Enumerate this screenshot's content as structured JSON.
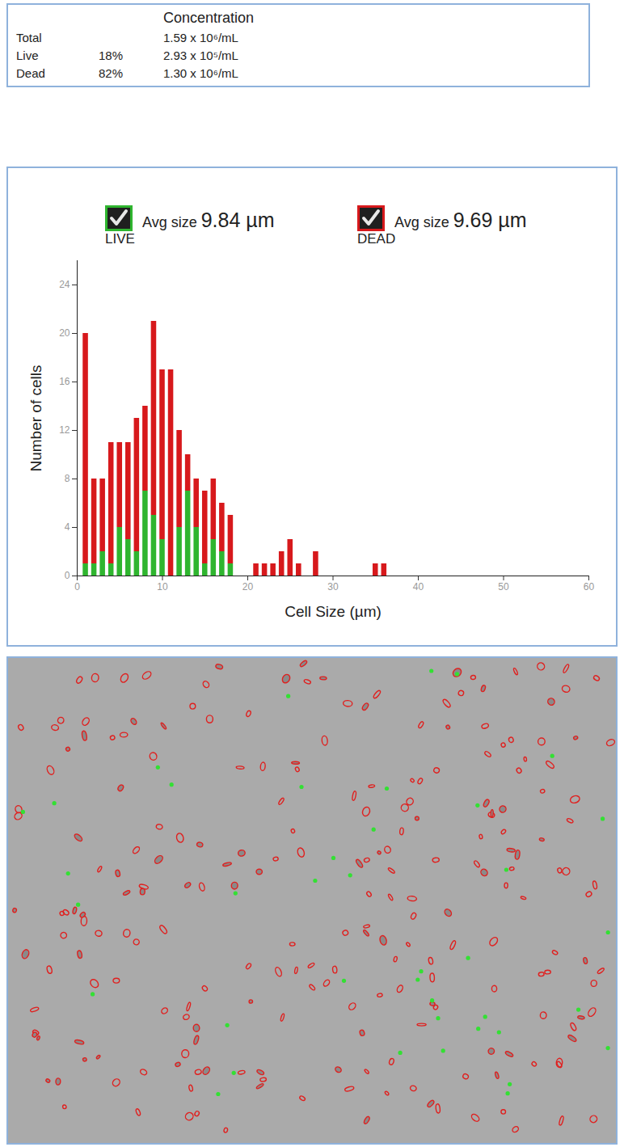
{
  "table": {
    "title": "Concentration",
    "rows": [
      [
        "Total",
        null,
        "1.59 x 10⁶/mL"
      ],
      [
        "Live",
        "18%",
        "2.93 x 10⁵/mL"
      ],
      [
        "Dead",
        "82%",
        "1.30 x 10⁶/mL"
      ]
    ]
  },
  "chart_data": {
    "type": "histogram",
    "stacked": true,
    "xlabel": "Cell Size (µm)",
    "ylabel": "Number of cells",
    "bins": [
      0.5,
      1.5,
      2.5,
      3.5,
      4.5,
      5.5,
      6.5,
      7.5,
      8.5,
      9.5,
      10.5,
      11.5,
      12.5,
      13.5,
      14.5,
      15.5,
      16.5,
      17.5,
      18.5,
      19.5,
      20.5,
      21.5,
      22.5,
      23.5,
      24.5,
      25.5,
      26.5,
      27.5,
      28.5,
      29.5,
      30.5,
      31.5,
      32.5,
      33.5,
      34.5,
      35.5,
      36.5
    ],
    "series": [
      {
        "name": "LIVE",
        "color": "#2fb52f",
        "avg_size": {
          "text": "Avg size",
          "value": 9.84,
          "unit": "µm"
        },
        "values": [
          1,
          1,
          2,
          1,
          4,
          3,
          2,
          7,
          5,
          3,
          0,
          4,
          7,
          4,
          1,
          3,
          2,
          1,
          0,
          0,
          0,
          0,
          0,
          0,
          0,
          0,
          0,
          0,
          0,
          0,
          0,
          0,
          0,
          0,
          0,
          0
        ]
      },
      {
        "name": "DEAD",
        "color": "#d7191c",
        "avg_size": {
          "text": "Avg size",
          "value": 9.69,
          "unit": "µm"
        },
        "values": [
          19,
          7,
          6,
          10,
          7,
          8,
          11,
          7,
          16,
          14,
          17,
          8,
          3,
          4,
          6,
          5,
          4,
          4,
          0,
          0,
          1,
          1,
          1,
          2,
          3,
          1,
          0,
          2,
          0,
          0,
          0,
          0,
          0,
          0,
          1,
          1
        ]
      }
    ],
    "xlim": [
      0,
      60
    ],
    "xticks": [
      0,
      10,
      20,
      30,
      40,
      50,
      60
    ],
    "ylim": [
      0,
      26
    ],
    "yticks": [
      0,
      4,
      8,
      12,
      16,
      20,
      24
    ],
    "grid": false
  }
}
